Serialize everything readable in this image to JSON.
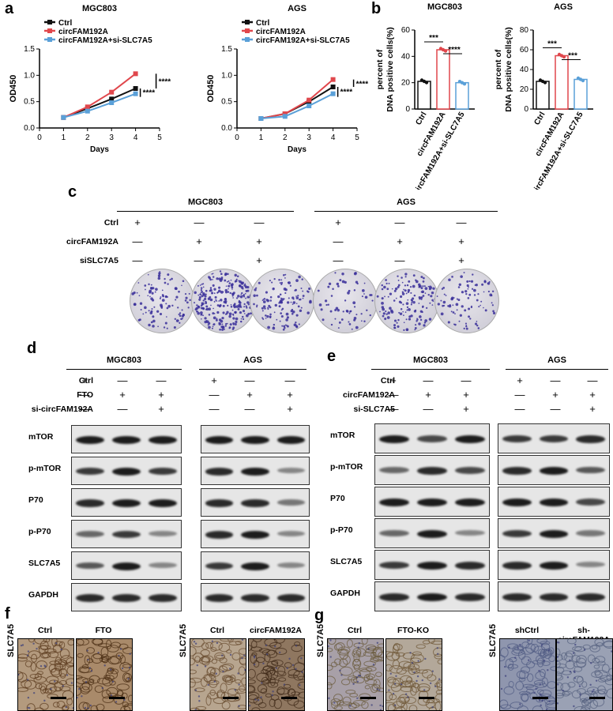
{
  "panels": {
    "a": "a",
    "b": "b",
    "c": "c",
    "d": "d",
    "e": "e",
    "f": "f",
    "g": "g"
  },
  "panel_a": {
    "legend": [
      "Ctrl",
      "circFAM192A",
      "circFAM192A+si-SLC7A5"
    ],
    "colors": {
      "ctrl": "#111111",
      "circ": "#e0474c",
      "si": "#5aa0d8"
    },
    "sig": "****",
    "charts": [
      {
        "title": "MGC803",
        "ylabel": "OD450",
        "xlabel": "Days",
        "xticks": [
          "0",
          "1",
          "2",
          "3",
          "4",
          "5"
        ],
        "yticks": [
          "0.0",
          "0.5",
          "1.0",
          "1.5"
        ]
      },
      {
        "title": "AGS",
        "ylabel": "OD450",
        "xlabel": "Days",
        "xticks": [
          "0",
          "1",
          "2",
          "3",
          "4",
          "5"
        ],
        "yticks": [
          "0.0",
          "0.5",
          "1.0",
          "1.5"
        ]
      }
    ]
  },
  "panel_b": {
    "ylabel_l1": "percent of",
    "ylabel_l2": "DNA positive cells(%)",
    "sig": [
      "***",
      "****",
      "***",
      "***"
    ],
    "charts": [
      {
        "title": "MGC803",
        "yticks": [
          "0",
          "20",
          "40",
          "60"
        ],
        "cats": [
          "Ctrl",
          "circFAM192A",
          "circFAM192A+si-SLC7A5"
        ]
      },
      {
        "title": "AGS",
        "yticks": [
          "0",
          "20",
          "40",
          "60",
          "80"
        ],
        "cats": [
          "Ctrl",
          "circFAM192A",
          "circFAM192A+si-SLC7A5"
        ]
      }
    ]
  },
  "chart_data": [
    {
      "type": "line",
      "title": "MGC803",
      "xlabel": "Days",
      "ylabel": "OD450",
      "xlim": [
        0,
        5
      ],
      "ylim": [
        0,
        1.5
      ],
      "x": [
        1,
        2,
        3,
        4
      ],
      "series": [
        {
          "name": "Ctrl",
          "values": [
            0.2,
            0.37,
            0.55,
            0.75
          ]
        },
        {
          "name": "circFAM192A",
          "values": [
            0.2,
            0.4,
            0.68,
            1.03
          ]
        },
        {
          "name": "circFAM192A+si-SLC7A5",
          "values": [
            0.2,
            0.32,
            0.48,
            0.65
          ]
        }
      ]
    },
    {
      "type": "line",
      "title": "AGS",
      "xlabel": "Days",
      "ylabel": "OD450",
      "xlim": [
        0,
        5
      ],
      "ylim": [
        0,
        1.5
      ],
      "x": [
        1,
        2,
        3,
        4
      ],
      "series": [
        {
          "name": "Ctrl",
          "values": [
            0.18,
            0.27,
            0.5,
            0.78
          ]
        },
        {
          "name": "circFAM192A",
          "values": [
            0.18,
            0.27,
            0.53,
            0.92
          ]
        },
        {
          "name": "circFAM192A+si-SLC7A5",
          "values": [
            0.18,
            0.22,
            0.42,
            0.65
          ]
        }
      ]
    },
    {
      "type": "bar",
      "title": "MGC803",
      "ylabel": "percent of DNA positive cells(%)",
      "ylim": [
        0,
        60
      ],
      "categories": [
        "Ctrl",
        "circFAM192A",
        "circFAM192A+si-SLC7A5"
      ],
      "values": [
        21,
        45,
        20
      ]
    },
    {
      "type": "bar",
      "title": "AGS",
      "ylabel": "percent of DNA positive cells(%)",
      "ylim": [
        0,
        80
      ],
      "categories": [
        "Ctrl",
        "circFAM192A",
        "circFAM192A+si-SLC7A5"
      ],
      "values": [
        28,
        54,
        30
      ]
    }
  ],
  "panel_c": {
    "groups": [
      "MGC803",
      "AGS"
    ],
    "rows": [
      {
        "label": "Ctrl",
        "marks": [
          "+",
          "—",
          "—",
          "+",
          "—",
          "—"
        ]
      },
      {
        "label": "circFAM192A",
        "marks": [
          "—",
          "+",
          "+",
          "—",
          "+",
          "+"
        ]
      },
      {
        "label": "siSLC7A5",
        "marks": [
          "—",
          "—",
          "+",
          "—",
          "—",
          "+"
        ]
      }
    ],
    "dish_density": [
      0.25,
      0.6,
      0.3,
      0.15,
      0.35,
      0.22
    ]
  },
  "panel_d": {
    "groups": [
      "MGC803",
      "AGS"
    ],
    "rows": [
      {
        "label": "Ctrl",
        "marks": [
          "+",
          "—",
          "—",
          "+",
          "—",
          "—"
        ]
      },
      {
        "label": "FTO",
        "marks": [
          "—",
          "+",
          "+",
          "—",
          "+",
          "+"
        ]
      },
      {
        "label": "si-circFAM192A",
        "marks": [
          "—",
          "—",
          "+",
          "—",
          "—",
          "+"
        ]
      }
    ],
    "blots": [
      "mTOR",
      "p-mTOR",
      "P70",
      "p-P70",
      "SLC7A5",
      "GAPDH"
    ]
  },
  "panel_e": {
    "groups": [
      "MGC803",
      "AGS"
    ],
    "rows": [
      {
        "label": "Ctrl",
        "marks": [
          "+",
          "—",
          "—",
          "+",
          "—",
          "—"
        ]
      },
      {
        "label": "circFAM192A",
        "marks": [
          "—",
          "+",
          "+",
          "—",
          "+",
          "+"
        ]
      },
      {
        "label": "si-SLC7A5",
        "marks": [
          "—",
          "—",
          "+",
          "—",
          "—",
          "+"
        ]
      }
    ],
    "blots": [
      "mTOR",
      "p-mTOR",
      "P70",
      "p-P70",
      "SLC7A5",
      "GAPDH"
    ]
  },
  "panel_f": {
    "side": "SLC7A5",
    "labels": [
      "Ctrl",
      "FTO",
      "Ctrl",
      "circFAM192A"
    ]
  },
  "panel_g": {
    "side": "SLC7A5",
    "labels": [
      "Ctrl",
      "FTO-KO",
      "shCtrl",
      "sh-circFAM192A"
    ]
  }
}
